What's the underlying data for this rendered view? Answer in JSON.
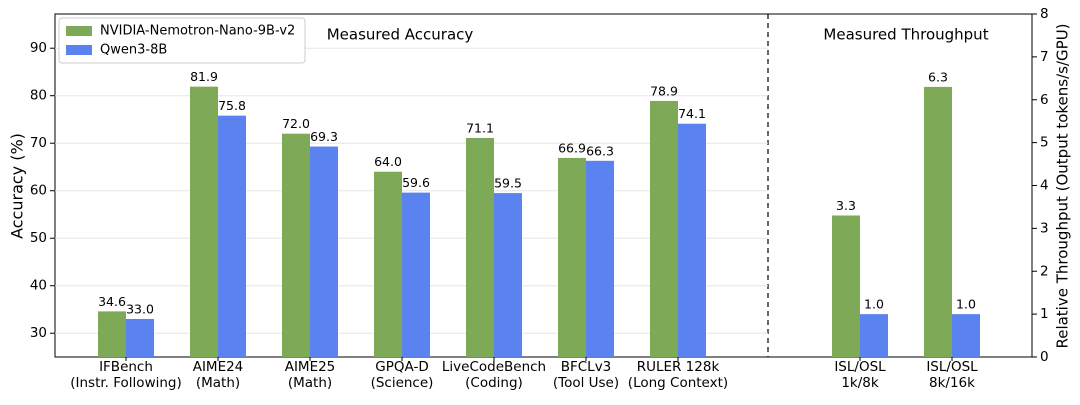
{
  "chart_data": [
    {
      "type": "bar",
      "annotation": "Measured Accuracy",
      "ylabel": "Accuracy (%)",
      "categories": [
        "IFBench\n(Instr. Following)",
        "AIME24\n(Math)",
        "AIME25\n(Math)",
        "GPQA-D\n(Science)",
        "LiveCodeBench\n(Coding)",
        "BFCLv3\n(Tool Use)",
        "RULER 128k\n(Long Context)"
      ],
      "series": [
        {
          "name": "NVIDIA-Nemotron-Nano-9B-v2",
          "color": "#7ea957",
          "values": [
            34.6,
            81.9,
            72.0,
            64.0,
            71.1,
            66.9,
            78.9
          ],
          "value_labels": [
            "34.6",
            "81.9",
            "72.0",
            "64.0",
            "71.1",
            "66.9",
            "78.9"
          ]
        },
        {
          "name": "Qwen3-8B",
          "color": "#5b83ef",
          "values": [
            33.0,
            75.8,
            69.3,
            59.6,
            59.5,
            66.3,
            74.1
          ],
          "value_labels": [
            "33.0",
            "75.8",
            "69.3",
            "59.6",
            "59.5",
            "66.3",
            "74.1"
          ]
        }
      ],
      "ylim": [
        25,
        97.2
      ],
      "yticks": [
        30,
        40,
        50,
        60,
        70,
        80,
        90
      ],
      "grid": true,
      "legend": "upper left"
    },
    {
      "type": "bar",
      "annotation": "Measured Throughput",
      "y2label": "Relative Throughput (Output tokens/s/GPU)",
      "categories": [
        "ISL/OSL\n1k/8k",
        "ISL/OSL\n8k/16k"
      ],
      "series": [
        {
          "color": "#7ea957",
          "axis": "y2",
          "values": [
            3.3,
            6.3
          ],
          "value_labels": [
            "3.3",
            "6.3"
          ]
        },
        {
          "color": "#5b83ef",
          "axis": "y2",
          "values": [
            1,
            1
          ],
          "value_labels": [
            "1.0",
            "1.0"
          ]
        }
      ],
      "y2lim": [
        0,
        8
      ],
      "y2ticks": [
        0,
        1,
        2,
        3,
        4,
        5,
        6,
        7,
        8
      ]
    }
  ]
}
